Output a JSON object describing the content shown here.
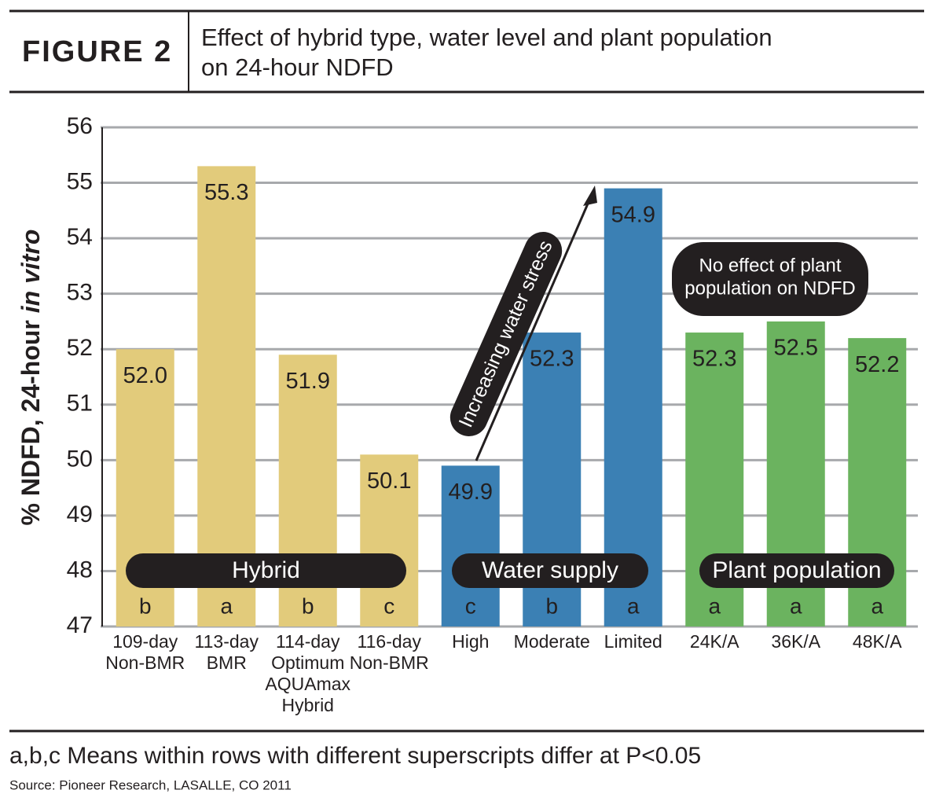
{
  "header": {
    "figure": "FIGURE 2",
    "title_lines": [
      "Effect of hybrid type, water level and plant population",
      "on 24-hour NDFD"
    ]
  },
  "chart_data": {
    "type": "bar",
    "y_label": {
      "text": "% NDFD, 24-hour",
      "italic": "in vitro"
    },
    "categories": [
      [
        "109-day",
        "Non-BMR"
      ],
      [
        "113-day",
        "BMR"
      ],
      [
        "114-day",
        "Optimum",
        "AQUAmax",
        "Hybrid"
      ],
      [
        "116-day",
        "Non-BMR"
      ],
      [
        "High"
      ],
      [
        "Moderate"
      ],
      [
        "Limited"
      ],
      [
        "24K/A"
      ],
      [
        "36K/A"
      ],
      [
        "48K/A"
      ]
    ],
    "values": [
      52.0,
      55.3,
      51.9,
      50.1,
      49.9,
      52.3,
      54.9,
      52.3,
      52.5,
      52.2
    ],
    "value_labels": [
      "52.0",
      "55.3",
      "51.9",
      "50.1",
      "49.9",
      "52.3",
      "54.9",
      "52.3",
      "52.5",
      "52.2"
    ],
    "significance": [
      "b",
      "a",
      "b",
      "c",
      "c",
      "b",
      "a",
      "a",
      "a",
      "a"
    ],
    "colors": [
      "#e2cb7b",
      "#e2cb7b",
      "#e2cb7b",
      "#e2cb7b",
      "#3b80b4",
      "#3b80b4",
      "#3b80b4",
      "#6bb35f",
      "#6bb35f",
      "#6bb35f"
    ],
    "group_labels": [
      "Hybrid",
      "Water supply",
      "Plant population"
    ],
    "annotations": [
      "Increasing water stress",
      [
        "No effect of plant",
        "population on NDFD"
      ]
    ],
    "ylim": [
      47,
      56
    ],
    "yticks": [
      47,
      48,
      49,
      50,
      51,
      52,
      53,
      54,
      55,
      56
    ],
    "grid": true
  },
  "footnote": "a,b,c Means within rows with different superscripts differ at P<0.05",
  "source": "Source: Pioneer Research,  LASALLE, CO 2011"
}
